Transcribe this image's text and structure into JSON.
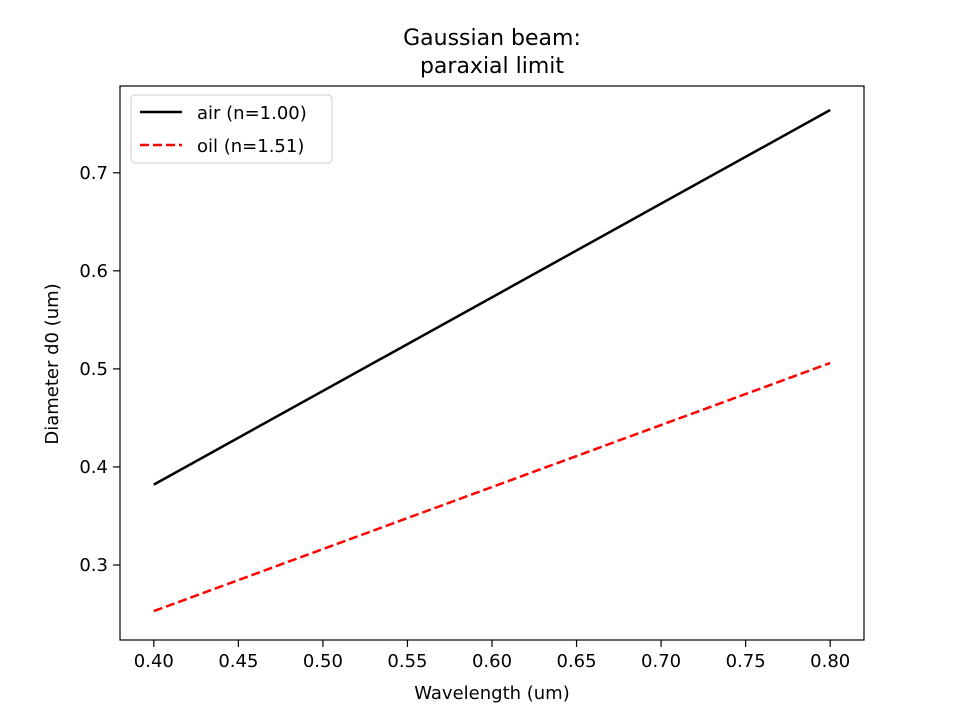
{
  "chart_data": {
    "type": "line",
    "title": "Gaussian beam:",
    "subtitle": "paraxial limit",
    "xlabel": "Wavelength (um)",
    "ylabel": "Diameter d0 (um)",
    "xlim": [
      0.38,
      0.82
    ],
    "ylim": [
      0.2235,
      0.7885
    ],
    "xticks": [
      0.4,
      0.45,
      0.5,
      0.55,
      0.6,
      0.65,
      0.7,
      0.75,
      0.8
    ],
    "xtick_labels": [
      "0.40",
      "0.45",
      "0.50",
      "0.55",
      "0.60",
      "0.65",
      "0.70",
      "0.75",
      "0.80"
    ],
    "yticks": [
      0.3,
      0.4,
      0.5,
      0.6,
      0.7
    ],
    "ytick_labels": [
      "0.3",
      "0.4",
      "0.5",
      "0.6",
      "0.7"
    ],
    "grid": false,
    "legend_position": "top-left",
    "series": [
      {
        "name": "air (n=1.00)",
        "color": "#000000",
        "dash": "solid",
        "x": [
          0.4,
          0.8
        ],
        "y": [
          0.382,
          0.764
        ]
      },
      {
        "name": "oil (n=1.51)",
        "color": "#ff0000",
        "dash": "dashed",
        "x": [
          0.4,
          0.8
        ],
        "y": [
          0.253,
          0.506
        ]
      }
    ]
  }
}
